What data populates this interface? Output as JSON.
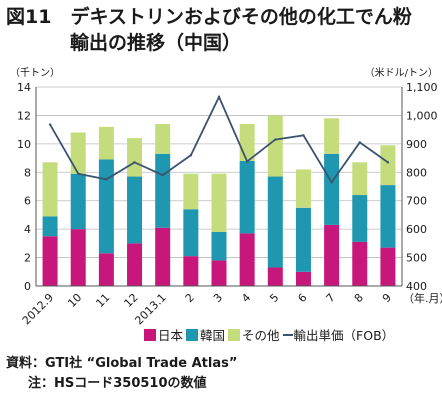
{
  "title": {
    "line1": "図11　デキストリンおよびその他の化工でん粉",
    "line2": "輸出の推移（中国）"
  },
  "units": {
    "left": "（千トン）",
    "right": "（米ドル/トン）",
    "x": "（年.月）"
  },
  "source": {
    "line1": "資料：GTI社 “Global Trade Atlas”",
    "line2": "注：HSコード350510の数値"
  },
  "chart_data": {
    "type": "bar",
    "stacked": true,
    "categories": [
      "2012.9",
      "10",
      "11",
      "12",
      "2013.1",
      "2",
      "3",
      "4",
      "5",
      "6",
      "7",
      "8",
      "9"
    ],
    "series": [
      {
        "name": "日本",
        "color": "#c8177a",
        "values": [
          3.5,
          4.0,
          2.3,
          3.0,
          4.1,
          2.1,
          1.8,
          3.7,
          1.3,
          1.0,
          4.3,
          3.1,
          2.7
        ]
      },
      {
        "name": "韓国",
        "color": "#1f97b0",
        "values": [
          1.4,
          3.9,
          6.6,
          4.7,
          5.2,
          3.3,
          2.0,
          5.1,
          6.4,
          4.5,
          5.0,
          3.3,
          4.4
        ]
      },
      {
        "name": "その他",
        "color": "#c5dc7c",
        "values": [
          3.8,
          2.9,
          2.3,
          2.7,
          2.1,
          2.5,
          4.1,
          2.6,
          4.3,
          2.7,
          2.5,
          2.3,
          2.8
        ]
      }
    ],
    "line_series": {
      "name": "輸出単価（FOB）",
      "color": "#3b5370",
      "axis": "right",
      "values": [
        968,
        795,
        775,
        835,
        790,
        860,
        1065,
        838,
        915,
        930,
        765,
        905,
        835
      ]
    },
    "y_left": {
      "min": 0,
      "max": 14,
      "ticks": [
        0,
        2,
        4,
        6,
        8,
        10,
        12,
        14
      ]
    },
    "y_right": {
      "min": 400,
      "max": 1100,
      "ticks": [
        "400",
        "500",
        "600",
        "700",
        "800",
        "900",
        "1,000",
        "1,100"
      ]
    },
    "grid": true,
    "legend_position": "bottom"
  }
}
